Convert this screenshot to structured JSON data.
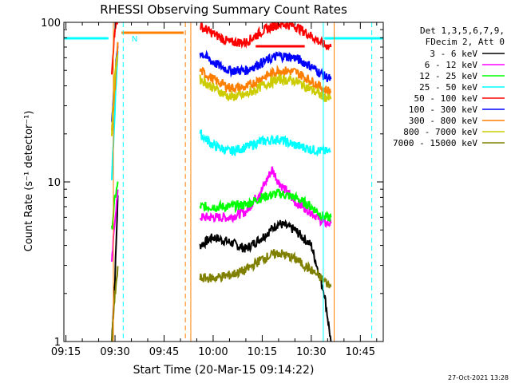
{
  "window": {
    "title": "RHESSI Observing Summary Count Rates"
  },
  "footer": {
    "date": "27-Oct-2021 13:28"
  },
  "chart_data": {
    "type": "line",
    "title": "RHESSI Observing Summary Count Rates",
    "xlabel": "Start Time (20-Mar-15 09:14:22)",
    "ylabel": "Count Rate (s⁻¹ detector⁻¹)",
    "y_scale": "log",
    "xlim": [
      "09:14:22",
      "10:52:00"
    ],
    "ylim": [
      1,
      100
    ],
    "x_ticks": [
      "09:15",
      "09:30",
      "09:45",
      "10:00",
      "10:15",
      "10:30",
      "10:45"
    ],
    "y_ticks": [
      "1",
      "10",
      "100"
    ],
    "legend_header": [
      "Det 1,3,5,6,7,9,",
      "FDecim 2, Att 0"
    ],
    "legend_position": "right",
    "series": [
      {
        "name": "3 - 6 keV",
        "color": "#000000",
        "x": [
          "09:29",
          "09:30",
          "09:31",
          "09:56",
          "10:00",
          "10:05",
          "10:10",
          "10:15",
          "10:20",
          "10:25",
          "10:30",
          "10:34",
          "10:36"
        ],
        "y": [
          1,
          2.5,
          10,
          4,
          4.5,
          4.2,
          3.8,
          4.5,
          5.5,
          5,
          4,
          2,
          1
        ]
      },
      {
        "name": "6 - 12 keV",
        "color": "#ff00ff",
        "x": [
          "09:29",
          "09:30",
          "09:31",
          "09:56",
          "10:00",
          "10:05",
          "10:10",
          "10:15",
          "10:18",
          "10:20",
          "10:25",
          "10:30",
          "10:34",
          "10:36"
        ],
        "y": [
          3,
          6,
          9,
          6,
          6,
          6,
          6.5,
          9,
          12,
          10,
          7.5,
          6.5,
          5.5,
          5.5
        ]
      },
      {
        "name": "12 - 25 keV",
        "color": "#00ff00",
        "x": [
          "09:29",
          "09:30",
          "09:31",
          "09:56",
          "10:00",
          "10:05",
          "10:10",
          "10:15",
          "10:20",
          "10:25",
          "10:30",
          "10:34",
          "10:36"
        ],
        "y": [
          5,
          8,
          10,
          7,
          7,
          7,
          7.2,
          8,
          8.5,
          8,
          7,
          6,
          6
        ]
      },
      {
        "name": "25 - 50 keV",
        "color": "#00ffff",
        "x": [
          "09:29",
          "09:30",
          "09:31",
          "09:56",
          "10:00",
          "10:05",
          "10:10",
          "10:15",
          "10:20",
          "10:25",
          "10:30",
          "10:34",
          "10:36"
        ],
        "y": [
          10,
          30,
          80,
          20,
          17,
          15.5,
          16.5,
          18,
          18.5,
          17,
          16,
          15.5,
          15.5
        ]
      },
      {
        "name": "50 - 100 keV",
        "color": "#ff0000",
        "x": [
          "09:29",
          "09:30",
          "09:31",
          "09:56",
          "10:00",
          "10:05",
          "10:10",
          "10:15",
          "10:20",
          "10:25",
          "10:30",
          "10:34",
          "10:36"
        ],
        "y": [
          50,
          95,
          100,
          95,
          85,
          75,
          75,
          88,
          98,
          95,
          82,
          72,
          70
        ]
      },
      {
        "name": "100 - 300 keV",
        "color": "#0000ff",
        "x": [
          "09:29",
          "09:30",
          "09:31",
          "09:56",
          "10:00",
          "10:05",
          "10:10",
          "10:15",
          "10:20",
          "10:25",
          "10:30",
          "10:34",
          "10:36"
        ],
        "y": [
          25,
          45,
          80,
          65,
          56,
          50,
          50,
          56,
          62,
          60,
          53,
          46,
          44
        ]
      },
      {
        "name": "300 - 800 keV",
        "color": "#ff7f00",
        "x": [
          "09:29",
          "09:30",
          "09:31",
          "09:56",
          "10:00",
          "10:05",
          "10:10",
          "10:15",
          "10:20",
          "10:25",
          "10:30",
          "10:34",
          "10:36"
        ],
        "y": [
          20,
          40,
          80,
          50,
          44,
          39,
          39,
          45,
          50,
          49,
          43,
          38,
          37
        ]
      },
      {
        "name": "800 - 7000 keV",
        "color": "#cccc00",
        "x": [
          "09:29",
          "09:30",
          "09:31",
          "09:56",
          "10:00",
          "10:05",
          "10:10",
          "10:15",
          "10:20",
          "10:25",
          "10:30",
          "10:34",
          "10:36"
        ],
        "y": [
          20,
          50,
          70,
          44,
          39,
          34,
          35,
          40,
          44,
          43,
          38,
          34,
          33
        ]
      },
      {
        "name": "7000 - 15000 keV",
        "color": "#808000",
        "x": [
          "09:29",
          "09:30",
          "09:31",
          "09:56",
          "10:00",
          "10:05",
          "10:10",
          "10:15",
          "10:20",
          "10:25",
          "10:30",
          "10:34",
          "10:36"
        ],
        "y": [
          1,
          2,
          3,
          2.5,
          2.5,
          2.6,
          2.8,
          3.3,
          3.6,
          3.3,
          2.8,
          2.4,
          2.2
        ]
      }
    ],
    "flag_bars": [
      {
        "label": "N",
        "color": "#00ffff",
        "segments": [
          [
            "09:14:22",
            "09:28"
          ],
          [
            "10:34",
            "10:52"
          ]
        ]
      },
      {
        "color": "#ff7f00",
        "segments": [
          [
            "09:32",
            "09:51"
          ]
        ]
      },
      {
        "color": "#ff0000",
        "segments": [
          [
            "10:13",
            "10:28"
          ]
        ]
      }
    ],
    "vertical_lines": [
      {
        "x": "09:29:30",
        "color": "#ff7f00",
        "style": "solid"
      },
      {
        "x": "09:32:30",
        "color": "#00ffff",
        "style": "dashed"
      },
      {
        "x": "09:51:30",
        "color": "#ff7f00",
        "style": "dashed"
      },
      {
        "x": "09:53:10",
        "color": "#ff7f00",
        "style": "solid"
      },
      {
        "x": "10:33:40",
        "color": "#00ffff",
        "style": "solid"
      },
      {
        "x": "10:37:00",
        "color": "#ff7f00",
        "style": "solid"
      },
      {
        "x": "10:48:30",
        "color": "#00ffff",
        "style": "dashed"
      }
    ]
  }
}
